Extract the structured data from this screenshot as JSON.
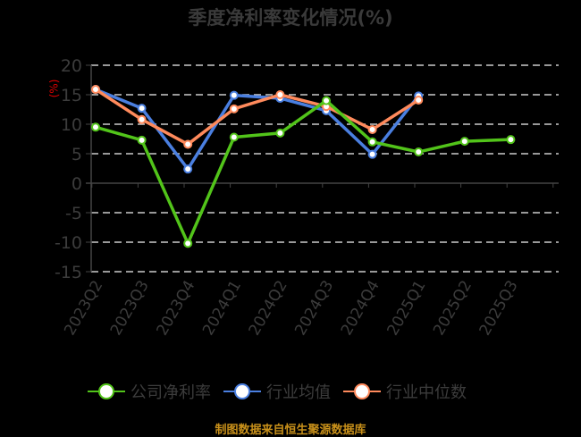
{
  "title": "季度净利率变化情况(%)",
  "unit_label": "(%)",
  "source": "制图数据来自恒生聚源数据库",
  "colors": {
    "company": "#52c41a",
    "industry_avg": "#4a7fe0",
    "industry_median": "#ff8a5c",
    "axis_text": "#3c3c3c",
    "grid": "#cccccc",
    "unit": "#e00000",
    "source": "#c8901a"
  },
  "legend": [
    {
      "label": "公司净利率",
      "color": "#52c41a"
    },
    {
      "label": "行业均值",
      "color": "#4a7fe0"
    },
    {
      "label": "行业中位数",
      "color": "#ff8a5c"
    }
  ],
  "chart_data": {
    "type": "line",
    "title": "季度净利率变化情况(%)",
    "xlabel": "",
    "ylabel": "(%)",
    "ylim": [
      -15,
      20
    ],
    "yticks": [
      20,
      15,
      10,
      5,
      0,
      -5,
      -10,
      -15
    ],
    "grid": true,
    "legend_position": "bottom",
    "categories": [
      "2023Q2",
      "2023Q3",
      "2023Q4",
      "2024Q1",
      "2024Q2",
      "2024Q3",
      "2024Q4",
      "2025Q1",
      "2025Q2",
      "2025Q3"
    ],
    "series": [
      {
        "name": "公司净利率",
        "values": [
          9.5,
          7.3,
          -10.2,
          7.8,
          8.5,
          14.0,
          7.0,
          5.3,
          7.1,
          7.4
        ]
      },
      {
        "name": "行业均值",
        "values": [
          15.9,
          12.7,
          2.4,
          14.9,
          14.4,
          12.3,
          4.9,
          14.8,
          null,
          null
        ]
      },
      {
        "name": "行业中位数",
        "values": [
          15.9,
          10.8,
          6.6,
          12.6,
          15.0,
          13.0,
          9.1,
          14.1,
          null,
          null
        ]
      }
    ]
  }
}
